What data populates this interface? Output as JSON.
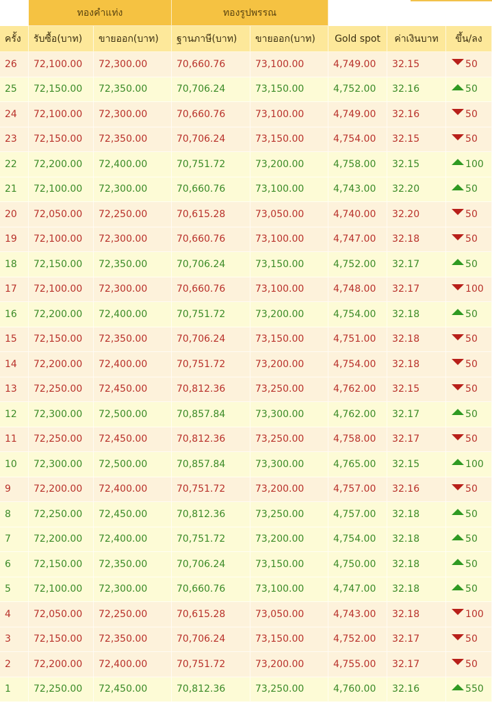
{
  "colors": {
    "header_group": "#f5c242",
    "header_row": "#fde89a",
    "down_text": "#b8302a",
    "up_text": "#3a8a26",
    "down_bg": "#fdf2db",
    "up_bg": "#fdfbd6"
  },
  "groups": {
    "bar": "ทองคำแท่ง",
    "ornament": "ทองรูปพรรณ"
  },
  "columns": [
    "ครั้ง",
    "รับซื้อ(บาท)",
    "ขายออก(บาท)",
    "ฐานภาษี(บาท)",
    "ขายออก(บาท)",
    "Gold spot",
    "ค่าเงินบาท",
    "ขึ้น/ลง"
  ],
  "rows": [
    {
      "no": "26",
      "buy": "72,100.00",
      "sell": "72,300.00",
      "tax": "70,660.76",
      "osell": "73,100.00",
      "spot": "4,749.00",
      "thb": "32.15",
      "dir": "down",
      "chg": "50"
    },
    {
      "no": "25",
      "buy": "72,150.00",
      "sell": "72,350.00",
      "tax": "70,706.24",
      "osell": "73,150.00",
      "spot": "4,752.00",
      "thb": "32.16",
      "dir": "up",
      "chg": "50"
    },
    {
      "no": "24",
      "buy": "72,100.00",
      "sell": "72,300.00",
      "tax": "70,660.76",
      "osell": "73,100.00",
      "spot": "4,749.00",
      "thb": "32.16",
      "dir": "down",
      "chg": "50"
    },
    {
      "no": "23",
      "buy": "72,150.00",
      "sell": "72,350.00",
      "tax": "70,706.24",
      "osell": "73,150.00",
      "spot": "4,754.00",
      "thb": "32.15",
      "dir": "down",
      "chg": "50"
    },
    {
      "no": "22",
      "buy": "72,200.00",
      "sell": "72,400.00",
      "tax": "70,751.72",
      "osell": "73,200.00",
      "spot": "4,758.00",
      "thb": "32.15",
      "dir": "up",
      "chg": "100"
    },
    {
      "no": "21",
      "buy": "72,100.00",
      "sell": "72,300.00",
      "tax": "70,660.76",
      "osell": "73,100.00",
      "spot": "4,743.00",
      "thb": "32.20",
      "dir": "up",
      "chg": "50"
    },
    {
      "no": "20",
      "buy": "72,050.00",
      "sell": "72,250.00",
      "tax": "70,615.28",
      "osell": "73,050.00",
      "spot": "4,740.00",
      "thb": "32.20",
      "dir": "down",
      "chg": "50"
    },
    {
      "no": "19",
      "buy": "72,100.00",
      "sell": "72,300.00",
      "tax": "70,660.76",
      "osell": "73,100.00",
      "spot": "4,747.00",
      "thb": "32.18",
      "dir": "down",
      "chg": "50"
    },
    {
      "no": "18",
      "buy": "72,150.00",
      "sell": "72,350.00",
      "tax": "70,706.24",
      "osell": "73,150.00",
      "spot": "4,752.00",
      "thb": "32.17",
      "dir": "up",
      "chg": "50"
    },
    {
      "no": "17",
      "buy": "72,100.00",
      "sell": "72,300.00",
      "tax": "70,660.76",
      "osell": "73,100.00",
      "spot": "4,748.00",
      "thb": "32.17",
      "dir": "down",
      "chg": "100"
    },
    {
      "no": "16",
      "buy": "72,200.00",
      "sell": "72,400.00",
      "tax": "70,751.72",
      "osell": "73,200.00",
      "spot": "4,754.00",
      "thb": "32.18",
      "dir": "up",
      "chg": "50"
    },
    {
      "no": "15",
      "buy": "72,150.00",
      "sell": "72,350.00",
      "tax": "70,706.24",
      "osell": "73,150.00",
      "spot": "4,751.00",
      "thb": "32.18",
      "dir": "down",
      "chg": "50"
    },
    {
      "no": "14",
      "buy": "72,200.00",
      "sell": "72,400.00",
      "tax": "70,751.72",
      "osell": "73,200.00",
      "spot": "4,754.00",
      "thb": "32.18",
      "dir": "down",
      "chg": "50"
    },
    {
      "no": "13",
      "buy": "72,250.00",
      "sell": "72,450.00",
      "tax": "70,812.36",
      "osell": "73,250.00",
      "spot": "4,762.00",
      "thb": "32.15",
      "dir": "down",
      "chg": "50"
    },
    {
      "no": "12",
      "buy": "72,300.00",
      "sell": "72,500.00",
      "tax": "70,857.84",
      "osell": "73,300.00",
      "spot": "4,762.00",
      "thb": "32.17",
      "dir": "up",
      "chg": "50"
    },
    {
      "no": "11",
      "buy": "72,250.00",
      "sell": "72,450.00",
      "tax": "70,812.36",
      "osell": "73,250.00",
      "spot": "4,758.00",
      "thb": "32.17",
      "dir": "down",
      "chg": "50"
    },
    {
      "no": "10",
      "buy": "72,300.00",
      "sell": "72,500.00",
      "tax": "70,857.84",
      "osell": "73,300.00",
      "spot": "4,765.00",
      "thb": "32.15",
      "dir": "up",
      "chg": "100"
    },
    {
      "no": "9",
      "buy": "72,200.00",
      "sell": "72,400.00",
      "tax": "70,751.72",
      "osell": "73,200.00",
      "spot": "4,757.00",
      "thb": "32.16",
      "dir": "down",
      "chg": "50"
    },
    {
      "no": "8",
      "buy": "72,250.00",
      "sell": "72,450.00",
      "tax": "70,812.36",
      "osell": "73,250.00",
      "spot": "4,757.00",
      "thb": "32.18",
      "dir": "up",
      "chg": "50"
    },
    {
      "no": "7",
      "buy": "72,200.00",
      "sell": "72,400.00",
      "tax": "70,751.72",
      "osell": "73,200.00",
      "spot": "4,754.00",
      "thb": "32.18",
      "dir": "up",
      "chg": "50"
    },
    {
      "no": "6",
      "buy": "72,150.00",
      "sell": "72,350.00",
      "tax": "70,706.24",
      "osell": "73,150.00",
      "spot": "4,750.00",
      "thb": "32.18",
      "dir": "up",
      "chg": "50"
    },
    {
      "no": "5",
      "buy": "72,100.00",
      "sell": "72,300.00",
      "tax": "70,660.76",
      "osell": "73,100.00",
      "spot": "4,747.00",
      "thb": "32.18",
      "dir": "up",
      "chg": "50"
    },
    {
      "no": "4",
      "buy": "72,050.00",
      "sell": "72,250.00",
      "tax": "70,615.28",
      "osell": "73,050.00",
      "spot": "4,743.00",
      "thb": "32.18",
      "dir": "down",
      "chg": "100"
    },
    {
      "no": "3",
      "buy": "72,150.00",
      "sell": "72,350.00",
      "tax": "70,706.24",
      "osell": "73,150.00",
      "spot": "4,752.00",
      "thb": "32.17",
      "dir": "down",
      "chg": "50"
    },
    {
      "no": "2",
      "buy": "72,200.00",
      "sell": "72,400.00",
      "tax": "70,751.72",
      "osell": "73,200.00",
      "spot": "4,755.00",
      "thb": "32.17",
      "dir": "down",
      "chg": "50"
    },
    {
      "no": "1",
      "buy": "72,250.00",
      "sell": "72,450.00",
      "tax": "70,812.36",
      "osell": "73,250.00",
      "spot": "4,760.00",
      "thb": "32.16",
      "dir": "up",
      "chg": "550"
    }
  ]
}
